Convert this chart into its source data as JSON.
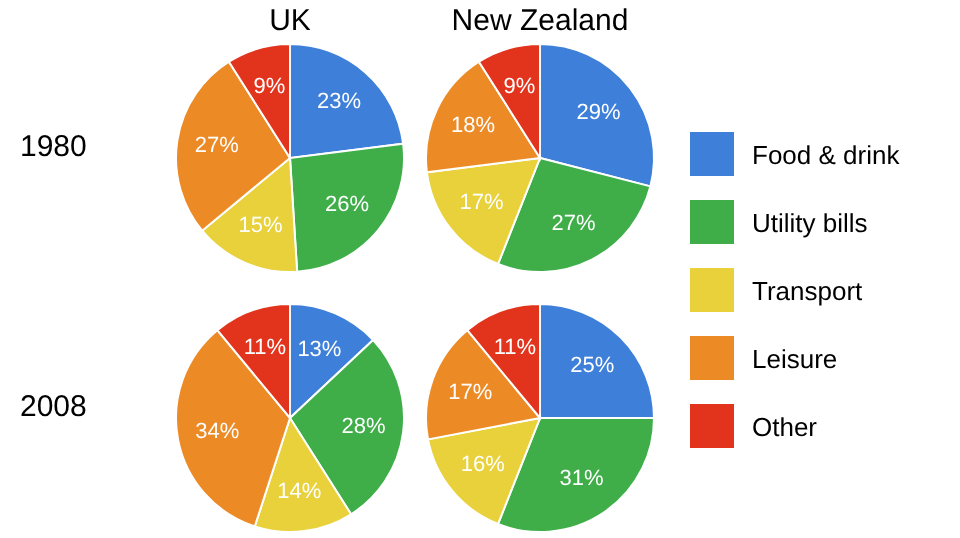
{
  "chart_data": [
    {
      "type": "pie",
      "title": "UK",
      "ylabel": "1980",
      "categories": [
        null,
        null,
        null,
        null,
        null
      ],
      "values": [
        23,
        26,
        15,
        27,
        9
      ],
      "colors": [
        "#3d7fd9",
        "#3fae49",
        "#e8d13a",
        "#ec8a25",
        "#e2341d"
      ],
      "value_labels": [
        "23%",
        "26%",
        "15%",
        "27%",
        "9%"
      ]
    },
    {
      "type": "pie",
      "title": "New Zealand",
      "categories": [
        "Food & drink",
        "Utility bills",
        "Transport",
        "Leisure",
        "Other"
      ],
      "values": [
        29,
        27,
        17,
        18,
        9
      ],
      "colors": [
        "#3d7fd9",
        "#3fae49",
        "#e8d13a",
        "#ec8a25",
        "#e2341d"
      ],
      "value_labels": [
        "29%",
        "27%",
        "17%",
        "18%",
        "9%"
      ],
      "legend": "right"
    },
    {
      "type": "pie",
      "ylabel": "2008",
      "categories": [
        null,
        null,
        null,
        null,
        null
      ],
      "values": [
        13,
        28,
        14,
        34,
        11
      ],
      "colors": [
        "#3d7fd9",
        "#3fae49",
        "#e8d13a",
        "#ec8a25",
        "#e2341d"
      ],
      "value_labels": [
        "13%",
        "28%",
        "14%",
        "34%",
        "11%"
      ]
    },
    {
      "type": "pie",
      "categories": [
        null,
        null,
        null,
        null,
        null
      ],
      "values": [
        25,
        31,
        16,
        17,
        11
      ],
      "colors": [
        "#3d7fd9",
        "#3fae49",
        "#e8d13a",
        "#ec8a25",
        "#e2341d"
      ],
      "value_labels": [
        "25%",
        "31%",
        "16%",
        "17%",
        "11%"
      ]
    }
  ]
}
